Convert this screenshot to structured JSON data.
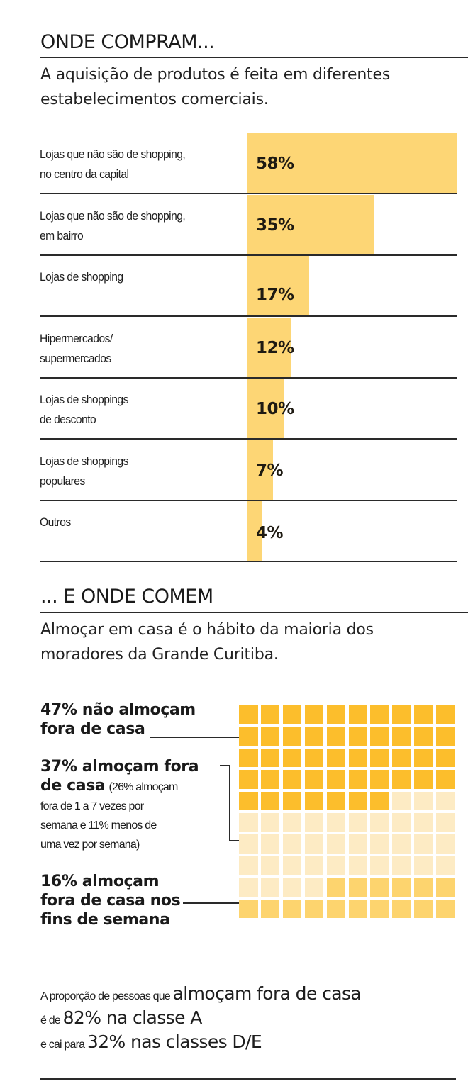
{
  "section1": {
    "title": "ONDE COMPRAM...",
    "subtitle_line1": "A aquisição de produtos é feita em diferentes",
    "subtitle_line2": "estabelecimentos comerciais.",
    "bar_color": "#FDD675"
  },
  "section2": {
    "title": "... E ONDE COMEM",
    "subtitle_line1": "Almoçar em casa é o hábito da maioria dos",
    "subtitle_line2": "moradores da Grande Curitiba.",
    "legend": [
      {
        "bold": "47% não almoçam",
        "bold2": "fora de casa",
        "color": "#FCBE2C"
      },
      {
        "bold": "37% almoçam fora",
        "bold2": "de casa",
        "small_inline": "(26% almoçam",
        "small_lines": [
          "fora de 1 a 7 vezes por",
          "semana e 11% menos de",
          "uma vez por semana)"
        ],
        "color": "#FDEBC4"
      },
      {
        "bold": "16% almoçam",
        "bold2": "fora de casa nos",
        "bold3": "fins de semana",
        "color": "#FDD46E"
      }
    ]
  },
  "footer": {
    "line1_small": "A proporção de pessoas que ",
    "line1_big": "almoçam fora de casa",
    "line2_small": "é de ",
    "line2_big": "82% na classe A",
    "line3_small": "e cai para ",
    "line3_big": "32% nas classes D/E"
  },
  "chart_data": [
    {
      "type": "bar",
      "orientation": "horizontal",
      "title": "ONDE COMPRAM...",
      "subtitle": "A aquisição de produtos é feita em diferentes estabelecimentos comerciais.",
      "categories": [
        "Lojas que não são de shopping, no centro da capital",
        "Lojas que não são de shopping, em bairro",
        "Lojas de shopping",
        "Hipermercados/ supermercados",
        "Lojas de shoppings de desconto",
        "Lojas de shoppings populares",
        "Outros"
      ],
      "label_lines": [
        [
          "Lojas que não são de shopping,",
          "no centro da capital"
        ],
        [
          "Lojas que não são de shopping,",
          "em bairro"
        ],
        [
          "Lojas de shopping",
          ""
        ],
        [
          "Hipermercados/",
          "supermercados"
        ],
        [
          "Lojas de shoppings",
          "de desconto"
        ],
        [
          "Lojas de shoppings",
          "populares"
        ],
        [
          "Outros",
          ""
        ]
      ],
      "values": [
        58,
        35,
        17,
        12,
        10,
        7,
        4
      ],
      "value_labels": [
        "58%",
        "35%",
        "17%",
        "12%",
        "10%",
        "7%",
        "4%"
      ],
      "unit": "%"
    },
    {
      "type": "waffle",
      "title": "... E ONDE COMEM",
      "subtitle": "Almoçar em casa é o hábito da maioria dos moradores da Grande Curitiba.",
      "grid": [
        10,
        10
      ],
      "categories": [
        "não almoçam fora de casa",
        "almoçam fora de casa",
        "almoçam fora de casa nos fins de semana"
      ],
      "values": [
        47,
        37,
        16
      ],
      "sub_breakdown": {
        "almoçam fora de 1 a 7 vezes por semana": 26,
        "menos de uma vez por semana": 11
      },
      "colors": [
        "#FCBE2C",
        "#FDEBC4",
        "#FDD46E"
      ]
    }
  ]
}
